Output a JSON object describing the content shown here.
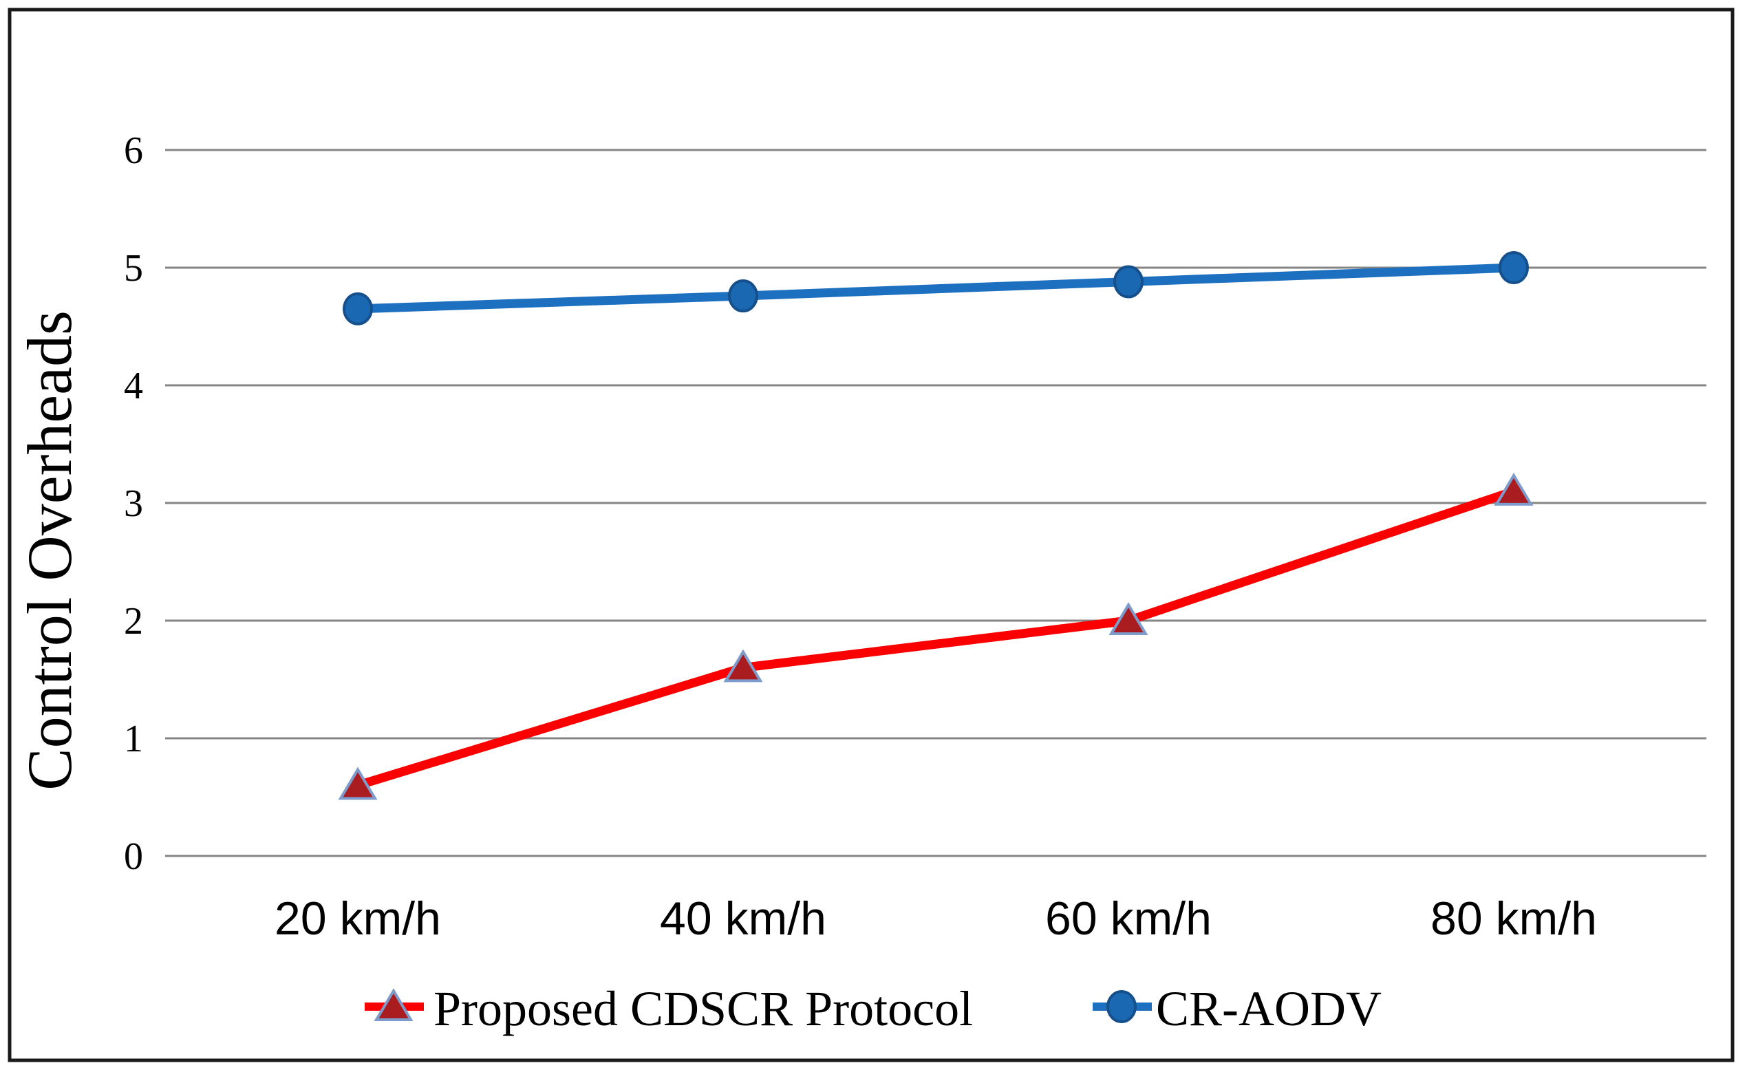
{
  "chart_data": {
    "type": "line",
    "title": "",
    "xlabel": "",
    "ylabel": "Control Overheads",
    "categories": [
      "20 km/h",
      "40 km/h",
      "60 km/h",
      "80 km/h"
    ],
    "series": [
      {
        "name": "Proposed CDSCR Protocol",
        "values": [
          0.6,
          1.6,
          2.0,
          3.1
        ],
        "line_color": "#fa0000",
        "marker": "triangle",
        "marker_fill": "#a91c20",
        "marker_border": "#7e9ccb"
      },
      {
        "name": "CR-AODV",
        "values": [
          4.65,
          4.76,
          4.88,
          5.0
        ],
        "line_color": "#1d6fbf",
        "marker": "circle",
        "marker_fill": "#1b68b2",
        "marker_border": "#16508c"
      }
    ],
    "ylim": [
      0,
      6
    ],
    "yticks": [
      0,
      1,
      2,
      3,
      4,
      5,
      6
    ],
    "grid": true,
    "legend_position": "bottom"
  },
  "styles": {
    "background_color": "#ffffff",
    "border_color": "#1a1a1a",
    "gridline_color": "#858585",
    "text_color": "#000000"
  }
}
